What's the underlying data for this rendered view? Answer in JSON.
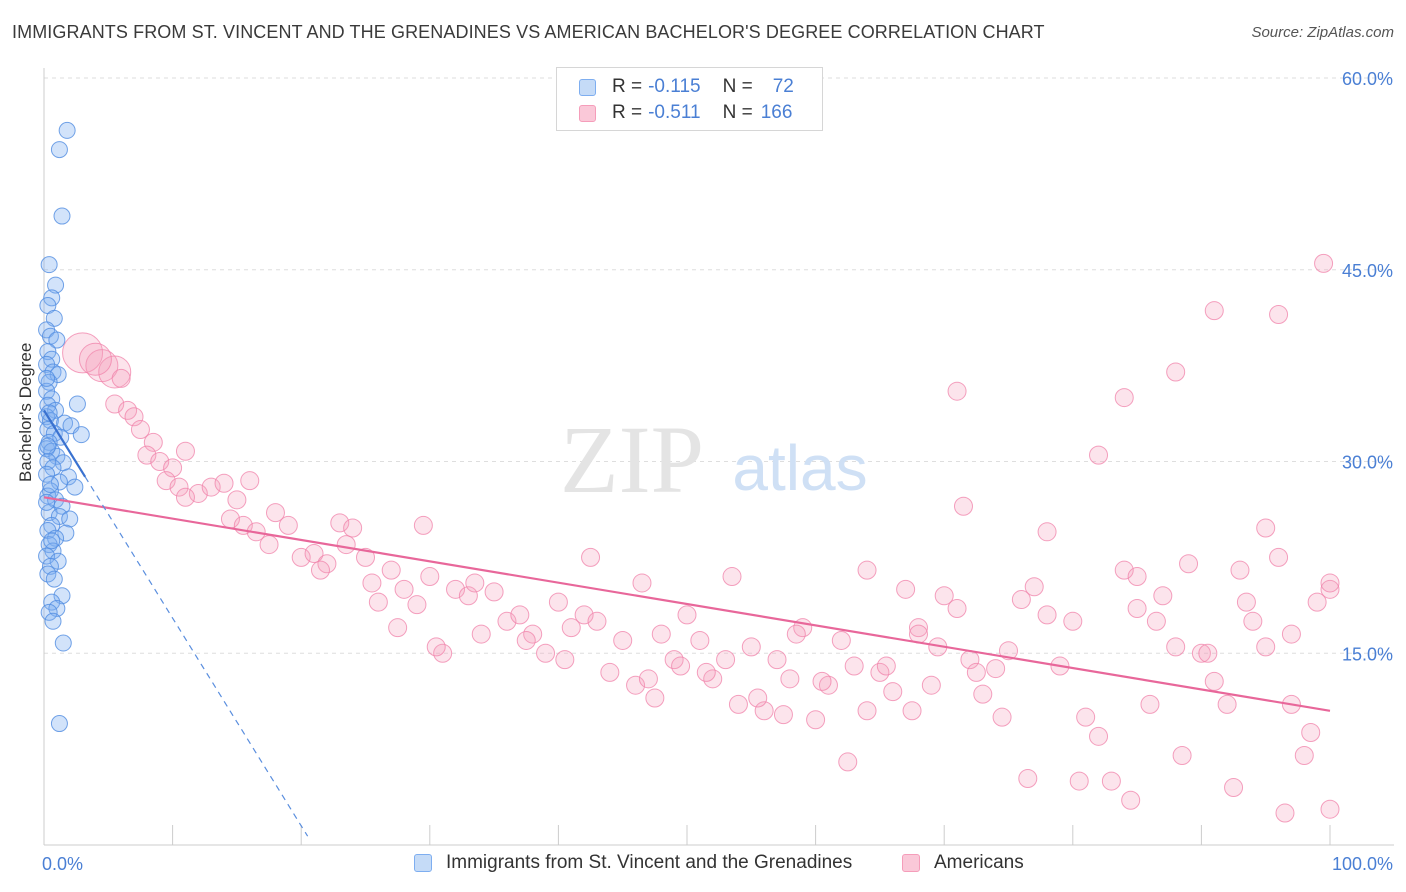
{
  "title": "IMMIGRANTS FROM ST. VINCENT AND THE GRENADINES VS AMERICAN BACHELOR'S DEGREE CORRELATION CHART",
  "source": "Source: ZipAtlas.com",
  "watermark": {
    "zip": "ZIP",
    "atlas": "atlas"
  },
  "legend_top": [
    {
      "r_label": "R =",
      "r_value": "-0.115",
      "n_label": "N =",
      "n_value": "72",
      "color": "#7eaef0"
    },
    {
      "r_label": "R =",
      "r_value": "-0.511",
      "n_label": "N =",
      "n_value": "166",
      "color": "#f59dba"
    }
  ],
  "legend_bottom": [
    {
      "label": "Immigrants from St. Vincent and the Grenadines",
      "color": "#7eaef0"
    },
    {
      "label": "Americans",
      "color": "#f59dba"
    }
  ],
  "chart_data": {
    "type": "scatter",
    "title": "IMMIGRANTS FROM ST. VINCENT AND THE GRENADINES VS AMERICAN BACHELOR'S DEGREE CORRELATION CHART",
    "xlabel": "",
    "ylabel": "Bachelor's Degree",
    "xlim": [
      0,
      100
    ],
    "ylim": [
      0,
      60
    ],
    "x_tick_labels": [
      "0.0%",
      "100.0%"
    ],
    "y_ticks": [
      15,
      30,
      45,
      60
    ],
    "y_tick_labels": [
      "15.0%",
      "30.0%",
      "45.0%",
      "60.0%"
    ],
    "grid": true,
    "legend_position": "top-center",
    "series": [
      {
        "name": "Immigrants from St. Vincent and the Grenadines",
        "color": "#7eaef0",
        "trend": {
          "x": [
            0,
            3.2
          ],
          "y": [
            34.0,
            28.8
          ],
          "dashed_to_x": 20.5
        },
        "points": [
          [
            1.8,
            55.9
          ],
          [
            1.2,
            54.4
          ],
          [
            1.4,
            49.2
          ],
          [
            0.4,
            45.4
          ],
          [
            0.9,
            43.8
          ],
          [
            0.6,
            42.8
          ],
          [
            0.3,
            42.2
          ],
          [
            0.8,
            41.2
          ],
          [
            0.2,
            40.3
          ],
          [
            0.5,
            39.8
          ],
          [
            1.0,
            39.5
          ],
          [
            0.3,
            38.6
          ],
          [
            0.6,
            38.0
          ],
          [
            0.2,
            37.6
          ],
          [
            0.7,
            37.0
          ],
          [
            1.1,
            36.8
          ],
          [
            0.4,
            36.2
          ],
          [
            0.2,
            35.5
          ],
          [
            0.6,
            34.9
          ],
          [
            0.3,
            34.4
          ],
          [
            2.6,
            34.5
          ],
          [
            0.9,
            34.0
          ],
          [
            0.2,
            33.5
          ],
          [
            0.5,
            33.2
          ],
          [
            1.6,
            33.0
          ],
          [
            2.1,
            32.8
          ],
          [
            0.3,
            32.5
          ],
          [
            0.8,
            32.2
          ],
          [
            2.9,
            32.1
          ],
          [
            1.3,
            31.9
          ],
          [
            0.4,
            31.5
          ],
          [
            0.2,
            31.0
          ],
          [
            0.6,
            30.8
          ],
          [
            1.0,
            30.4
          ],
          [
            0.3,
            30.0
          ],
          [
            1.5,
            29.9
          ],
          [
            0.7,
            29.5
          ],
          [
            0.2,
            29.0
          ],
          [
            1.9,
            28.8
          ],
          [
            1.2,
            28.4
          ],
          [
            2.4,
            28.0
          ],
          [
            0.5,
            27.7
          ],
          [
            0.3,
            27.3
          ],
          [
            0.9,
            27.0
          ],
          [
            1.4,
            26.5
          ],
          [
            0.4,
            26.0
          ],
          [
            1.2,
            25.7
          ],
          [
            2.0,
            25.5
          ],
          [
            0.6,
            25.0
          ],
          [
            0.3,
            24.6
          ],
          [
            1.7,
            24.4
          ],
          [
            0.9,
            24.0
          ],
          [
            0.4,
            23.5
          ],
          [
            0.7,
            23.0
          ],
          [
            0.2,
            22.6
          ],
          [
            1.1,
            22.2
          ],
          [
            0.5,
            21.8
          ],
          [
            0.3,
            21.2
          ],
          [
            0.8,
            20.8
          ],
          [
            1.4,
            19.5
          ],
          [
            0.6,
            19.0
          ],
          [
            1.0,
            18.5
          ],
          [
            0.4,
            18.2
          ],
          [
            0.7,
            17.5
          ],
          [
            1.5,
            15.8
          ],
          [
            1.2,
            9.5
          ],
          [
            0.2,
            36.5
          ],
          [
            0.4,
            33.8
          ],
          [
            0.3,
            31.2
          ],
          [
            0.5,
            28.2
          ],
          [
            0.2,
            26.8
          ],
          [
            0.6,
            23.8
          ]
        ]
      },
      {
        "name": "Americans",
        "color": "#f59dba",
        "trend": {
          "x": [
            0,
            100
          ],
          "y": [
            27.2,
            10.5
          ]
        },
        "points": [
          [
            3,
            38.5
          ],
          [
            4.5,
            37.5
          ],
          [
            5.5,
            37.0
          ],
          [
            4,
            38.0
          ],
          [
            6,
            36.5
          ],
          [
            5.5,
            34.5
          ],
          [
            6.5,
            34.0
          ],
          [
            7,
            33.5
          ],
          [
            7.5,
            32.5
          ],
          [
            8.5,
            31.5
          ],
          [
            8,
            30.5
          ],
          [
            9,
            30.0
          ],
          [
            10,
            29.5
          ],
          [
            11,
            30.8
          ],
          [
            9.5,
            28.5
          ],
          [
            10.5,
            28.0
          ],
          [
            12,
            27.5
          ],
          [
            11,
            27.2
          ],
          [
            13,
            28.0
          ],
          [
            14,
            28.3
          ],
          [
            15,
            27.0
          ],
          [
            16,
            28.5
          ],
          [
            14.5,
            25.5
          ],
          [
            15.5,
            25.0
          ],
          [
            16.5,
            24.5
          ],
          [
            17.5,
            23.5
          ],
          [
            18,
            26.0
          ],
          [
            19,
            25.0
          ],
          [
            20,
            22.5
          ],
          [
            21,
            22.8
          ],
          [
            22,
            22.0
          ],
          [
            21.5,
            21.5
          ],
          [
            23,
            25.2
          ],
          [
            24,
            24.8
          ],
          [
            23.5,
            23.5
          ],
          [
            25,
            22.5
          ],
          [
            25.5,
            20.5
          ],
          [
            26,
            19.0
          ],
          [
            27,
            21.5
          ],
          [
            28,
            20.0
          ],
          [
            29,
            18.8
          ],
          [
            27.5,
            17.0
          ],
          [
            30,
            21.0
          ],
          [
            31,
            15.0
          ],
          [
            29.5,
            25.0
          ],
          [
            32,
            20.0
          ],
          [
            33,
            19.5
          ],
          [
            34,
            16.5
          ],
          [
            35,
            19.8
          ],
          [
            36,
            17.5
          ],
          [
            33.5,
            20.5
          ],
          [
            37,
            18.0
          ],
          [
            38,
            16.5
          ],
          [
            39,
            15.0
          ],
          [
            40,
            19.0
          ],
          [
            41,
            17.0
          ],
          [
            42,
            18.0
          ],
          [
            43,
            17.5
          ],
          [
            44,
            13.5
          ],
          [
            45,
            16.0
          ],
          [
            46,
            12.5
          ],
          [
            47,
            13.0
          ],
          [
            48,
            16.5
          ],
          [
            49,
            14.5
          ],
          [
            50,
            18.0
          ],
          [
            51,
            16.0
          ],
          [
            52,
            13.0
          ],
          [
            53,
            14.5
          ],
          [
            54,
            11.0
          ],
          [
            55,
            15.5
          ],
          [
            56,
            10.5
          ],
          [
            57,
            14.5
          ],
          [
            58,
            13.0
          ],
          [
            59,
            17.0
          ],
          [
            60,
            9.8
          ],
          [
            61,
            12.5
          ],
          [
            62,
            16.0
          ],
          [
            63,
            14.0
          ],
          [
            64,
            10.5
          ],
          [
            65,
            13.5
          ],
          [
            66,
            12.0
          ],
          [
            67,
            20.0
          ],
          [
            68,
            17.0
          ],
          [
            69,
            12.5
          ],
          [
            70,
            19.5
          ],
          [
            71,
            18.5
          ],
          [
            72,
            14.5
          ],
          [
            73,
            11.8
          ],
          [
            74,
            13.8
          ],
          [
            75,
            15.2
          ],
          [
            76,
            19.2
          ],
          [
            77,
            20.2
          ],
          [
            78,
            18.0
          ],
          [
            79,
            14.0
          ],
          [
            80,
            17.5
          ],
          [
            81,
            10.0
          ],
          [
            82,
            8.5
          ],
          [
            83,
            5.0
          ],
          [
            84,
            21.5
          ],
          [
            85,
            18.5
          ],
          [
            86,
            11.0
          ],
          [
            87,
            19.5
          ],
          [
            88,
            15.5
          ],
          [
            89,
            22.0
          ],
          [
            90,
            15.0
          ],
          [
            91,
            12.8
          ],
          [
            92,
            11.0
          ],
          [
            93,
            21.5
          ],
          [
            94,
            17.5
          ],
          [
            95,
            15.5
          ],
          [
            96,
            22.5
          ],
          [
            97,
            11.0
          ],
          [
            98,
            7.0
          ],
          [
            99,
            19.0
          ],
          [
            100,
            20.0
          ],
          [
            55.5,
            11.5
          ],
          [
            57.5,
            10.2
          ],
          [
            46.5,
            20.5
          ],
          [
            37.5,
            16.0
          ],
          [
            30.5,
            15.5
          ],
          [
            49.5,
            14.0
          ],
          [
            53.5,
            21.0
          ],
          [
            62.5,
            6.5
          ],
          [
            67.5,
            10.5
          ],
          [
            71.5,
            26.5
          ],
          [
            76.5,
            5.2
          ],
          [
            80.5,
            5.0
          ],
          [
            84.5,
            3.5
          ],
          [
            88.5,
            7.0
          ],
          [
            92.5,
            4.5
          ],
          [
            96.5,
            2.5
          ],
          [
            100.5,
            20.5
          ],
          [
            99.5,
            45.5
          ],
          [
            96,
            41.5
          ],
          [
            91,
            41.8
          ],
          [
            88,
            37.0
          ],
          [
            84,
            35.0
          ],
          [
            82,
            30.5
          ],
          [
            71,
            35.5
          ],
          [
            78,
            24.5
          ],
          [
            85,
            21.0
          ],
          [
            93.5,
            19.0
          ],
          [
            95,
            24.8
          ],
          [
            97,
            16.5
          ],
          [
            98.5,
            8.8
          ],
          [
            100,
            2.8
          ],
          [
            64,
            21.5
          ],
          [
            68,
            16.5
          ],
          [
            72.5,
            13.5
          ],
          [
            74.5,
            10.0
          ],
          [
            86.5,
            17.5
          ],
          [
            90.5,
            15.0
          ],
          [
            42.5,
            22.5
          ],
          [
            40.5,
            14.5
          ],
          [
            47.5,
            11.5
          ],
          [
            51.5,
            13.5
          ],
          [
            58.5,
            16.5
          ],
          [
            60.5,
            12.8
          ],
          [
            65.5,
            14.0
          ],
          [
            69.5,
            15.5
          ]
        ]
      }
    ]
  }
}
